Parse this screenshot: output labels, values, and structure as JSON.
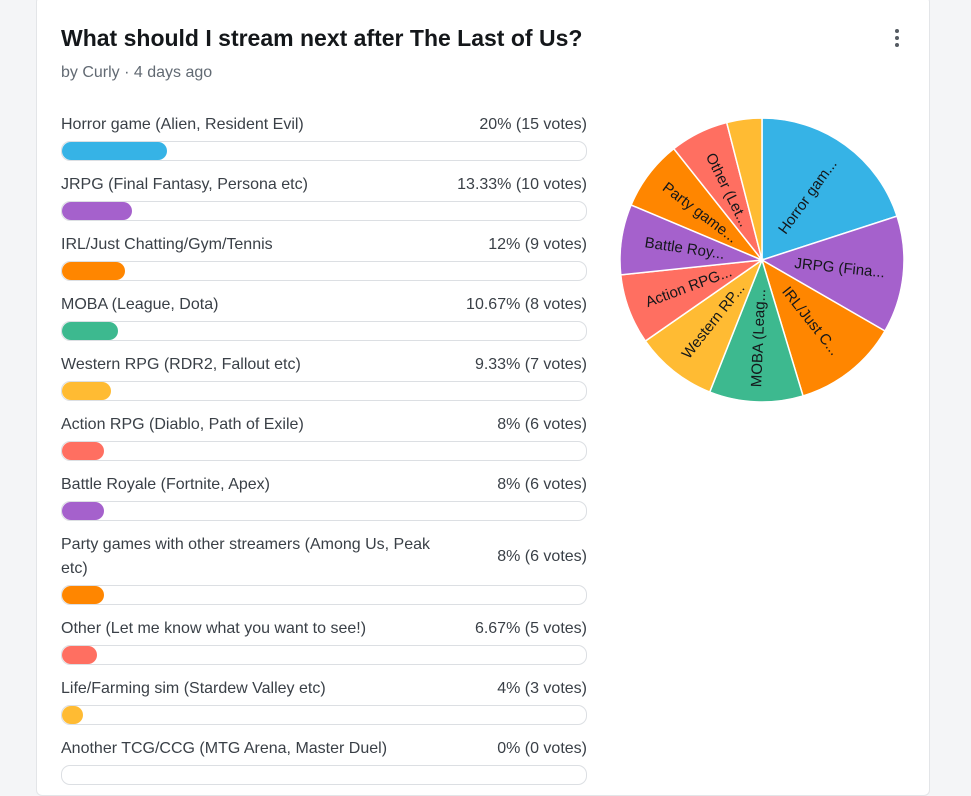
{
  "poll": {
    "title": "What should I stream next after The Last of Us?",
    "byline": "by Curly · 4 days ago",
    "more_icon": "vertical-ellipsis-icon"
  },
  "chart_data": {
    "type": "pie",
    "colors": [
      "#36b3e6",
      "#a561cc",
      "#ff8600",
      "#3db98f",
      "#ffbb33",
      "#ff6f61"
    ],
    "slices": [
      {
        "label": "Horror game (Alien, Resident Evil)",
        "short": "Horror gam...",
        "pct_text": "20% (15 votes)",
        "value": 15,
        "percent": 20,
        "color": "#36b3e6"
      },
      {
        "label": "JRPG (Final Fantasy, Persona etc)",
        "short": "JRPG (Fina...",
        "pct_text": "13.33% (10 votes)",
        "value": 10,
        "percent": 13.33,
        "color": "#a561cc"
      },
      {
        "label": "IRL/Just Chatting/Gym/Tennis",
        "short": "IRL/Just C...",
        "pct_text": "12% (9 votes)",
        "value": 9,
        "percent": 12,
        "color": "#ff8600"
      },
      {
        "label": "MOBA (League, Dota)",
        "short": "MOBA (Leag...",
        "pct_text": "10.67% (8 votes)",
        "value": 8,
        "percent": 10.67,
        "color": "#3db98f"
      },
      {
        "label": "Western RPG (RDR2, Fallout etc)",
        "short": "Western RP...",
        "pct_text": "9.33% (7 votes)",
        "value": 7,
        "percent": 9.33,
        "color": "#ffbb33"
      },
      {
        "label": "Action RPG (Diablo, Path of Exile)",
        "short": "Action RPG...",
        "pct_text": "8% (6 votes)",
        "value": 6,
        "percent": 8,
        "color": "#ff6f61"
      },
      {
        "label": "Battle Royale (Fortnite, Apex)",
        "short": "Battle Roy...",
        "pct_text": "8% (6 votes)",
        "value": 6,
        "percent": 8,
        "color": "#a561cc"
      },
      {
        "label": "Party games with other streamers (Among Us, Peak etc)",
        "short": "Party game...",
        "pct_text": "8% (6 votes)",
        "value": 6,
        "percent": 8,
        "color": "#ff8600"
      },
      {
        "label": "Other (Let me know what you want to see!)",
        "short": "Other (Let...",
        "pct_text": "6.67% (5 votes)",
        "value": 5,
        "percent": 6.67,
        "color": "#ff6f61"
      },
      {
        "label": "Life/Farming sim (Stardew Valley etc)",
        "short": "",
        "pct_text": "4% (3 votes)",
        "value": 3,
        "percent": 4,
        "color": "#ffbb33"
      },
      {
        "label": "Another TCG/CCG (MTG Arena, Master Duel)",
        "short": "",
        "pct_text": "0% (0 votes)",
        "value": 0,
        "percent": 0,
        "color": "#36b3e6"
      }
    ]
  }
}
